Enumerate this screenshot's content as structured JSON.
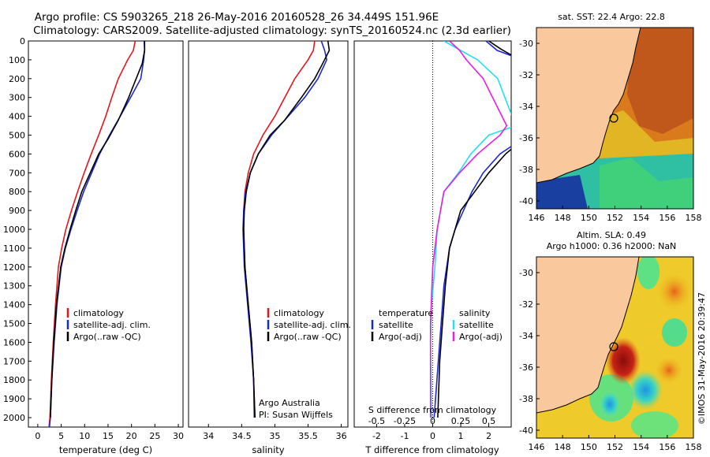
{
  "header": {
    "line1": "Argo profile: CS 5903265_218 26-May-2016 20160528_26 34.449S 151.96E",
    "line2": "Climatology: CARS2009. Satellite-adjusted climatology: synTS_20160524.nc (2.3d earlier)"
  },
  "colors": {
    "climatology": "#e8141b",
    "satellite": "#1c28d4",
    "argo": "#000000",
    "sal_satellite": "#22e0ee",
    "sal_argo": "#e81ee0",
    "land": "#f9c89d",
    "coast": "#000000"
  },
  "panels": {
    "temperature": {
      "xlabel": "temperature (deg C)",
      "legend": [
        "climatology",
        "satellite-adj. clim.",
        "Argo(..raw -QC)"
      ]
    },
    "salinity": {
      "xlabel": "salinity",
      "legend": [
        "climatology",
        "satellite-adj. clim.",
        "Argo(..raw -QC)"
      ],
      "credit1": "Argo Australia",
      "credit2": "PI: Susan Wijffels"
    },
    "difference": {
      "xlabel_bottom": "T difference from climatology",
      "xlabel_top": "S difference from climatology",
      "legend_temp_title": "temperature",
      "legend_sal_title": "salinity",
      "legend_items": [
        "satellite",
        "Argo(-adj)"
      ]
    }
  },
  "maps": {
    "sst": {
      "title": "sat. SST: 22.4  Argo: 22.8"
    },
    "sla": {
      "title1": "Altim. SLA: 0.49",
      "title2": "Argo h1000: 0.36 h2000: NaN"
    },
    "lat_ticks": [
      "-30",
      "-32",
      "-34",
      "-36",
      "-38",
      "-40"
    ],
    "lon_ticks": [
      "146",
      "148",
      "150",
      "152",
      "154",
      "156",
      "158"
    ],
    "argo_position": {
      "lon": 151.96,
      "lat": -34.449
    }
  },
  "stamp": "©IMOS 31-May-2016 20:39:47",
  "chart_data": [
    {
      "type": "line",
      "name": "temperature profile",
      "xlabel": "temperature (deg C)",
      "ylabel": "",
      "xlim": [
        -2,
        31
      ],
      "ylim": [
        2050,
        0
      ],
      "xticks": [
        0,
        5,
        10,
        15,
        20,
        25,
        30
      ],
      "yticks": [
        0,
        100,
        200,
        300,
        400,
        500,
        600,
        700,
        800,
        900,
        1000,
        1100,
        1200,
        1300,
        1400,
        1500,
        1600,
        1700,
        1800,
        1900,
        2000
      ],
      "series": [
        {
          "name": "climatology",
          "x": [
            20.8,
            20.4,
            19.2,
            17.2,
            15.8,
            14.5,
            13.0,
            11.4,
            9.9,
            8.5,
            7.2,
            6.0,
            5.1,
            4.4,
            3.8,
            3.3,
            2.9,
            2.6,
            2.4
          ],
          "y": [
            0,
            50,
            100,
            200,
            300,
            400,
            500,
            600,
            700,
            800,
            900,
            1000,
            1100,
            1200,
            1400,
            1600,
            1800,
            2000,
            2050
          ]
        },
        {
          "name": "satellite-adj. clim.",
          "x": [
            22.7,
            22.8,
            22.6,
            22.0,
            19.8,
            17.6,
            15.3,
            13.2,
            11.5,
            9.8,
            8.4,
            7.1,
            5.9,
            5.0,
            4.1,
            3.5,
            3.0,
            2.7,
            2.5
          ],
          "y": [
            0,
            50,
            100,
            200,
            300,
            400,
            500,
            600,
            700,
            800,
            900,
            1000,
            1100,
            1200,
            1400,
            1600,
            1800,
            2000,
            2050
          ]
        },
        {
          "name": "Argo(..raw -QC)",
          "x": [
            22.8,
            22.8,
            22.3,
            21.0,
            19.4,
            17.2,
            15.0,
            13.0,
            11.2,
            9.4,
            8.1,
            6.9,
            5.8,
            4.9,
            4.0,
            3.4,
            3.0,
            2.7
          ],
          "y": [
            0,
            50,
            120,
            200,
            300,
            420,
            520,
            600,
            700,
            800,
            900,
            1000,
            1100,
            1200,
            1400,
            1600,
            1800,
            2000
          ]
        }
      ]
    },
    {
      "type": "line",
      "name": "salinity profile",
      "xlabel": "salinity",
      "xlim": [
        33.7,
        36.1
      ],
      "ylim": [
        2050,
        0
      ],
      "xticks": [
        34,
        34.5,
        35,
        35.5,
        36
      ],
      "series": [
        {
          "name": "climatology",
          "x": [
            35.6,
            35.58,
            35.5,
            35.3,
            35.15,
            35.0,
            34.82,
            34.68,
            34.6,
            34.55,
            34.53,
            34.53,
            34.55,
            34.6,
            34.65,
            34.68,
            34.7
          ],
          "y": [
            0,
            50,
            100,
            200,
            300,
            400,
            500,
            600,
            700,
            800,
            900,
            1000,
            1200,
            1400,
            1600,
            1800,
            2000
          ]
        },
        {
          "name": "satellite-adj. clim.",
          "x": [
            35.7,
            35.75,
            35.78,
            35.65,
            35.45,
            35.2,
            34.95,
            34.75,
            34.63,
            34.56,
            34.53,
            34.52,
            34.54,
            34.59,
            34.64,
            34.68,
            34.69
          ],
          "y": [
            0,
            50,
            100,
            200,
            300,
            400,
            500,
            600,
            700,
            800,
            900,
            1000,
            1200,
            1400,
            1600,
            1800,
            2000
          ]
        },
        {
          "name": "Argo(..raw -QC)",
          "x": [
            35.8,
            35.82,
            35.72,
            35.6,
            35.4,
            35.15,
            34.93,
            34.75,
            34.63,
            34.57,
            34.54,
            34.53,
            34.55,
            34.6,
            34.65,
            34.68,
            34.7
          ],
          "y": [
            0,
            50,
            120,
            200,
            300,
            420,
            500,
            600,
            700,
            800,
            900,
            1000,
            1200,
            1400,
            1600,
            1800,
            2000
          ]
        }
      ]
    },
    {
      "type": "line",
      "name": "difference from climatology",
      "xlabel": "T difference from climatology",
      "xlabel_top": "S difference from climatology",
      "xlim": [
        -2.8,
        2.8
      ],
      "ylim": [
        2050,
        0
      ],
      "xticks": [
        -2,
        -1,
        0,
        1,
        2
      ],
      "xticks_top": [
        -0.5,
        -0.25,
        0,
        0.25,
        0.5
      ],
      "series": [
        {
          "name": "temperature satellite",
          "x": [
            1.9,
            2.3,
            3.2,
            4.8,
            4.2,
            3.4,
            2.4,
            1.8,
            1.4,
            1.1,
            0.8,
            0.6,
            0.4,
            0.3,
            0.2,
            0.1,
            0.05
          ],
          "y": [
            0,
            50,
            100,
            300,
            400,
            500,
            600,
            700,
            800,
            900,
            1000,
            1100,
            1300,
            1500,
            1700,
            1900,
            2000
          ]
        },
        {
          "name": "temperature Argo(-adj)",
          "x": [
            2.0,
            2.4,
            3.1,
            3.4,
            2.6,
            2.0,
            1.5,
            1.0,
            0.8,
            0.6,
            0.45,
            0.35,
            0.25,
            0.18
          ],
          "y": [
            0,
            40,
            100,
            500,
            600,
            700,
            800,
            900,
            1000,
            1100,
            1300,
            1500,
            1700,
            2000
          ]
        },
        {
          "name": "salinity satellite",
          "x": [
            0.1,
            0.25,
            0.4,
            0.58,
            0.74,
            0.5,
            0.34,
            0.23,
            0.1,
            0.04,
            0.02,
            -0.01,
            -0.02,
            -0.01
          ],
          "y": [
            0,
            50,
            100,
            200,
            450,
            500,
            600,
            700,
            800,
            1000,
            1200,
            1400,
            1600,
            2000
          ]
        },
        {
          "name": "salinity Argo(-adj)",
          "x": [
            0.15,
            0.24,
            0.3,
            0.45,
            0.66,
            0.6,
            0.4,
            0.24,
            0.1,
            0.04,
            0.0,
            -0.02,
            -0.02
          ],
          "y": [
            0,
            50,
            100,
            200,
            450,
            500,
            600,
            700,
            800,
            1000,
            1200,
            1500,
            2000
          ]
        }
      ]
    }
  ]
}
